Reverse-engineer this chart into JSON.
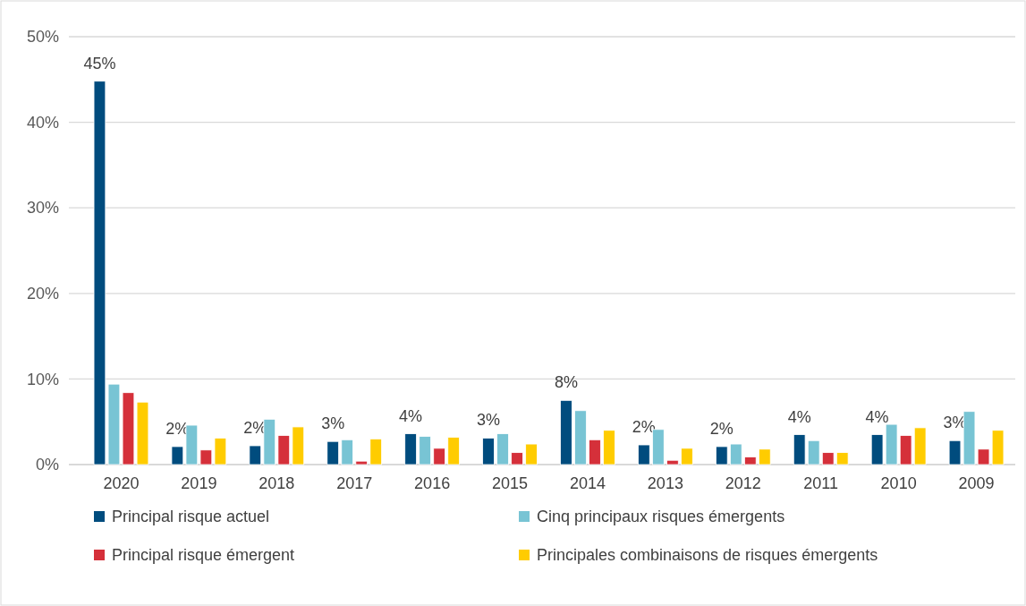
{
  "chart_data": {
    "type": "bar",
    "categories": [
      "2020",
      "2019",
      "2018",
      "2017",
      "2016",
      "2015",
      "2014",
      "2013",
      "2012",
      "2011",
      "2010",
      "2009"
    ],
    "series": [
      {
        "name": "Principal risque actuel",
        "color": "#004c7e",
        "values": [
          44.8,
          2.1,
          2.2,
          2.7,
          3.6,
          3.1,
          7.5,
          2.3,
          2.1,
          3.5,
          3.5,
          2.8
        ],
        "value_labels": [
          "45%",
          "2%",
          "2%",
          "3%",
          "4%",
          "3%",
          "8%",
          "2%",
          "2%",
          "4%",
          "4%",
          "3%"
        ]
      },
      {
        "name": "Cinq principaux risques émergents",
        "color": "#78c4d4",
        "values": [
          9.4,
          4.6,
          5.3,
          2.9,
          3.3,
          3.6,
          6.3,
          4.1,
          2.4,
          2.8,
          4.7,
          6.2
        ]
      },
      {
        "name": "Principal risque émergent",
        "color": "#d5303a",
        "values": [
          8.4,
          1.7,
          3.4,
          0.4,
          1.9,
          1.4,
          2.9,
          0.5,
          0.9,
          1.4,
          3.4,
          1.8
        ]
      },
      {
        "name": "Principales combinaisons de risques émergents",
        "color": "#ffcc00",
        "values": [
          7.3,
          3.1,
          4.4,
          3.0,
          3.2,
          2.4,
          4.0,
          1.9,
          1.8,
          1.4,
          4.3,
          4.0
        ]
      }
    ],
    "ylim": [
      0,
      50
    ],
    "yticks": [
      {
        "value": 0,
        "label": "0%"
      },
      {
        "value": 10,
        "label": "10%"
      },
      {
        "value": 20,
        "label": "20%"
      },
      {
        "value": 30,
        "label": "30%"
      },
      {
        "value": 40,
        "label": "40%"
      },
      {
        "value": 50,
        "label": "50%"
      }
    ],
    "grid": "y",
    "legend": "bottom"
  }
}
